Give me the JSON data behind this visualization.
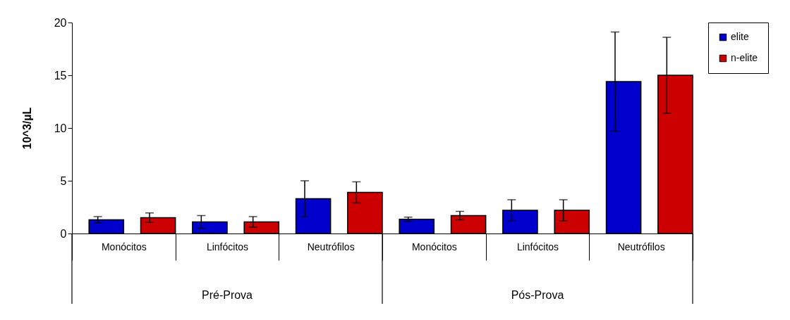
{
  "chart_data": {
    "type": "bar",
    "ylabel": "10^3/µL",
    "categories": [
      "Monócitos",
      "Linfócitos",
      "Neutrófilos",
      "Monócitos",
      "Linfócitos",
      "Neutrófilos"
    ],
    "series": [
      {
        "name": "elite",
        "color": "#0000cc",
        "values": [
          1.3,
          1.1,
          3.3,
          1.35,
          2.2,
          14.4
        ],
        "errors": [
          0.3,
          0.6,
          1.7,
          0.2,
          1.0,
          4.7
        ]
      },
      {
        "name": "n-elite",
        "color": "#cc0000",
        "values": [
          1.5,
          1.1,
          3.9,
          1.7,
          2.2,
          15.0
        ],
        "errors": [
          0.45,
          0.5,
          1.0,
          0.4,
          1.0,
          3.6
        ]
      }
    ],
    "ylim": [
      0,
      20
    ],
    "yticks": [
      0,
      5,
      10,
      15,
      20
    ],
    "grid": false,
    "legend": "right",
    "annotations": [
      "Pré-Prova",
      "Pós-Prova"
    ]
  }
}
